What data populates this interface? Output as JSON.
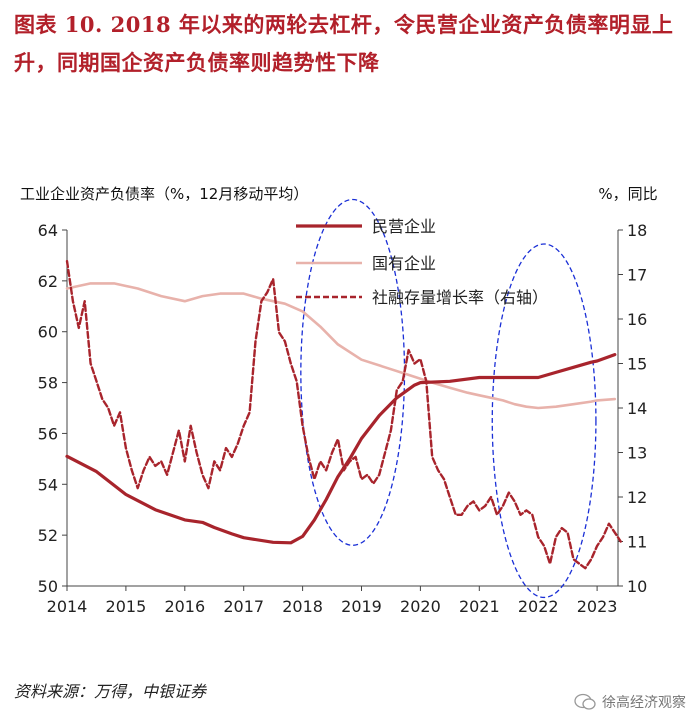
{
  "figure": {
    "title": "图表  10. 2018 年以来的两轮去杠杆，令民营企业资产负债率明显上升，同期国企资产负债率则趋势性下降",
    "source": "资料来源：万得，中银证券",
    "watermark": "徐高经济观察"
  },
  "chart_data": {
    "type": "line",
    "left_axis_label": "工业企业资产负债率（%，12月移动平均）",
    "right_axis_label": "%，同比",
    "left_ylim": [
      50,
      64
    ],
    "left_ticks": [
      "50",
      "52",
      "54",
      "56",
      "58",
      "60",
      "62",
      "64"
    ],
    "right_ylim": [
      10,
      18
    ],
    "right_ticks": [
      "10",
      "11",
      "12",
      "13",
      "14",
      "15",
      "16",
      "17",
      "18"
    ],
    "xlim": [
      2014,
      2023.5
    ],
    "x_ticks": [
      "2014",
      "2015",
      "2016",
      "2017",
      "2018",
      "2019",
      "2020",
      "2021",
      "2022",
      "2023"
    ],
    "series": [
      {
        "name": "民营企业",
        "axis": "left",
        "color": "#a8242c",
        "style": "solid",
        "x": [
          2014.0,
          2014.5,
          2015.0,
          2015.5,
          2016.0,
          2016.3,
          2016.5,
          2016.8,
          2017.0,
          2017.5,
          2017.8,
          2018.0,
          2018.2,
          2018.4,
          2018.6,
          2018.8,
          2019.0,
          2019.3,
          2019.6,
          2019.9,
          2020.0,
          2020.5,
          2021.0,
          2021.5,
          2021.8,
          2022.0,
          2022.3,
          2022.6,
          2022.9,
          2023.0,
          2023.3
        ],
        "y": [
          55.1,
          54.5,
          53.6,
          53.0,
          52.6,
          52.5,
          52.3,
          52.05,
          51.9,
          51.72,
          51.7,
          51.95,
          52.6,
          53.4,
          54.3,
          55.0,
          55.8,
          56.7,
          57.4,
          57.9,
          58.0,
          58.05,
          58.2,
          58.2,
          58.2,
          58.2,
          58.4,
          58.6,
          58.8,
          58.85,
          59.1
        ]
      },
      {
        "name": "国有企业",
        "axis": "left",
        "color": "#e8b2ab",
        "style": "solid",
        "x": [
          2014.0,
          2014.4,
          2014.8,
          2015.2,
          2015.6,
          2016.0,
          2016.3,
          2016.6,
          2017.0,
          2017.3,
          2017.7,
          2018.0,
          2018.3,
          2018.6,
          2019.0,
          2019.4,
          2019.8,
          2020.2,
          2020.5,
          2020.8,
          2021.0,
          2021.2,
          2021.4,
          2021.6,
          2021.8,
          2022.0,
          2022.3,
          2022.6,
          2022.9,
          2023.0,
          2023.3
        ],
        "y": [
          61.7,
          61.9,
          61.9,
          61.7,
          61.4,
          61.2,
          61.4,
          61.5,
          61.5,
          61.3,
          61.1,
          60.8,
          60.2,
          59.5,
          58.9,
          58.6,
          58.3,
          58.0,
          57.8,
          57.6,
          57.5,
          57.4,
          57.3,
          57.15,
          57.05,
          57.0,
          57.05,
          57.15,
          57.25,
          57.3,
          57.35
        ]
      },
      {
        "name": "社融存量增长率（右轴）",
        "axis": "right",
        "color": "#a8242c",
        "style": "dashed",
        "x": [
          2014.0,
          2014.1,
          2014.2,
          2014.3,
          2014.4,
          2014.5,
          2014.6,
          2014.7,
          2014.8,
          2014.9,
          2015.0,
          2015.1,
          2015.2,
          2015.3,
          2015.4,
          2015.5,
          2015.6,
          2015.7,
          2015.8,
          2015.9,
          2016.0,
          2016.1,
          2016.2,
          2016.3,
          2016.4,
          2016.5,
          2016.6,
          2016.7,
          2016.8,
          2016.9,
          2017.0,
          2017.1,
          2017.2,
          2017.3,
          2017.4,
          2017.5,
          2017.6,
          2017.7,
          2017.8,
          2017.9,
          2018.0,
          2018.1,
          2018.2,
          2018.3,
          2018.4,
          2018.5,
          2018.6,
          2018.7,
          2018.8,
          2018.9,
          2019.0,
          2019.1,
          2019.2,
          2019.3,
          2019.4,
          2019.5,
          2019.6,
          2019.7,
          2019.8,
          2019.9,
          2020.0,
          2020.1,
          2020.2,
          2020.3,
          2020.4,
          2020.5,
          2020.6,
          2020.7,
          2020.8,
          2020.9,
          2021.0,
          2021.1,
          2021.2,
          2021.3,
          2021.4,
          2021.5,
          2021.6,
          2021.7,
          2021.8,
          2021.9,
          2022.0,
          2022.1,
          2022.2,
          2022.3,
          2022.4,
          2022.5,
          2022.6,
          2022.7,
          2022.8,
          2022.9,
          2023.0,
          2023.1,
          2023.2,
          2023.3,
          2023.4
        ],
        "y": [
          17.3,
          16.4,
          15.8,
          16.4,
          15.0,
          14.6,
          14.2,
          14.0,
          13.6,
          13.9,
          13.1,
          12.6,
          12.2,
          12.6,
          12.9,
          12.7,
          12.8,
          12.5,
          13.0,
          13.5,
          12.8,
          13.6,
          13.0,
          12.5,
          12.2,
          12.8,
          12.6,
          13.1,
          12.9,
          13.2,
          13.6,
          13.9,
          15.5,
          16.4,
          16.6,
          16.9,
          15.7,
          15.5,
          15.0,
          14.6,
          13.6,
          12.9,
          12.4,
          12.8,
          12.6,
          13.0,
          13.3,
          12.6,
          12.8,
          12.9,
          12.4,
          12.5,
          12.3,
          12.5,
          13.0,
          13.5,
          14.4,
          14.6,
          15.3,
          15.0,
          15.1,
          14.6,
          12.9,
          12.6,
          12.4,
          12.0,
          11.6,
          11.6,
          11.8,
          11.9,
          11.7,
          11.8,
          12.0,
          11.6,
          11.8,
          12.1,
          11.9,
          11.6,
          11.7,
          11.6,
          11.1,
          10.9,
          10.5,
          11.1,
          11.3,
          11.2,
          10.6,
          10.5,
          10.4,
          10.6,
          10.9,
          11.1,
          11.4,
          11.2,
          11.0
        ]
      }
    ],
    "highlight_ellipses": [
      {
        "center_x": 2018.85,
        "center_y_left": 58.4,
        "radius_years": 0.88,
        "radius_left": 6.8,
        "color": "#1a2fd6"
      },
      {
        "center_x": 2022.1,
        "center_y_left": 56.5,
        "radius_years": 0.88,
        "radius_left": 6.95,
        "color": "#1a2fd6"
      }
    ]
  }
}
